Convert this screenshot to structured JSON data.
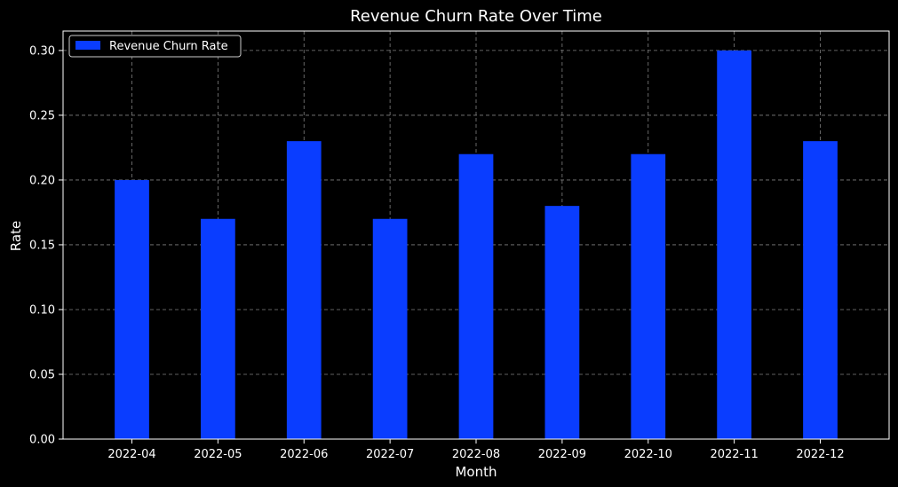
{
  "chart_data": {
    "type": "bar",
    "title": "Revenue Churn Rate Over Time",
    "xlabel": "Month",
    "ylabel": "Rate",
    "categories": [
      "2022-04",
      "2022-05",
      "2022-06",
      "2022-07",
      "2022-08",
      "2022-09",
      "2022-10",
      "2022-11",
      "2022-12"
    ],
    "series": [
      {
        "name": "Revenue Churn Rate",
        "values": [
          0.2,
          0.17,
          0.23,
          0.17,
          0.22,
          0.18,
          0.22,
          0.3,
          0.23
        ],
        "color": "#0a3dff"
      }
    ],
    "ylim": [
      0,
      0.315
    ],
    "yticks": [
      "0.00",
      "0.05",
      "0.10",
      "0.15",
      "0.20",
      "0.25",
      "0.30"
    ],
    "grid": true,
    "legend_position": "top-left",
    "colors": {
      "background": "#000000",
      "text": "#ffffff",
      "grid": "#808080",
      "axes": "#ffffff"
    }
  }
}
